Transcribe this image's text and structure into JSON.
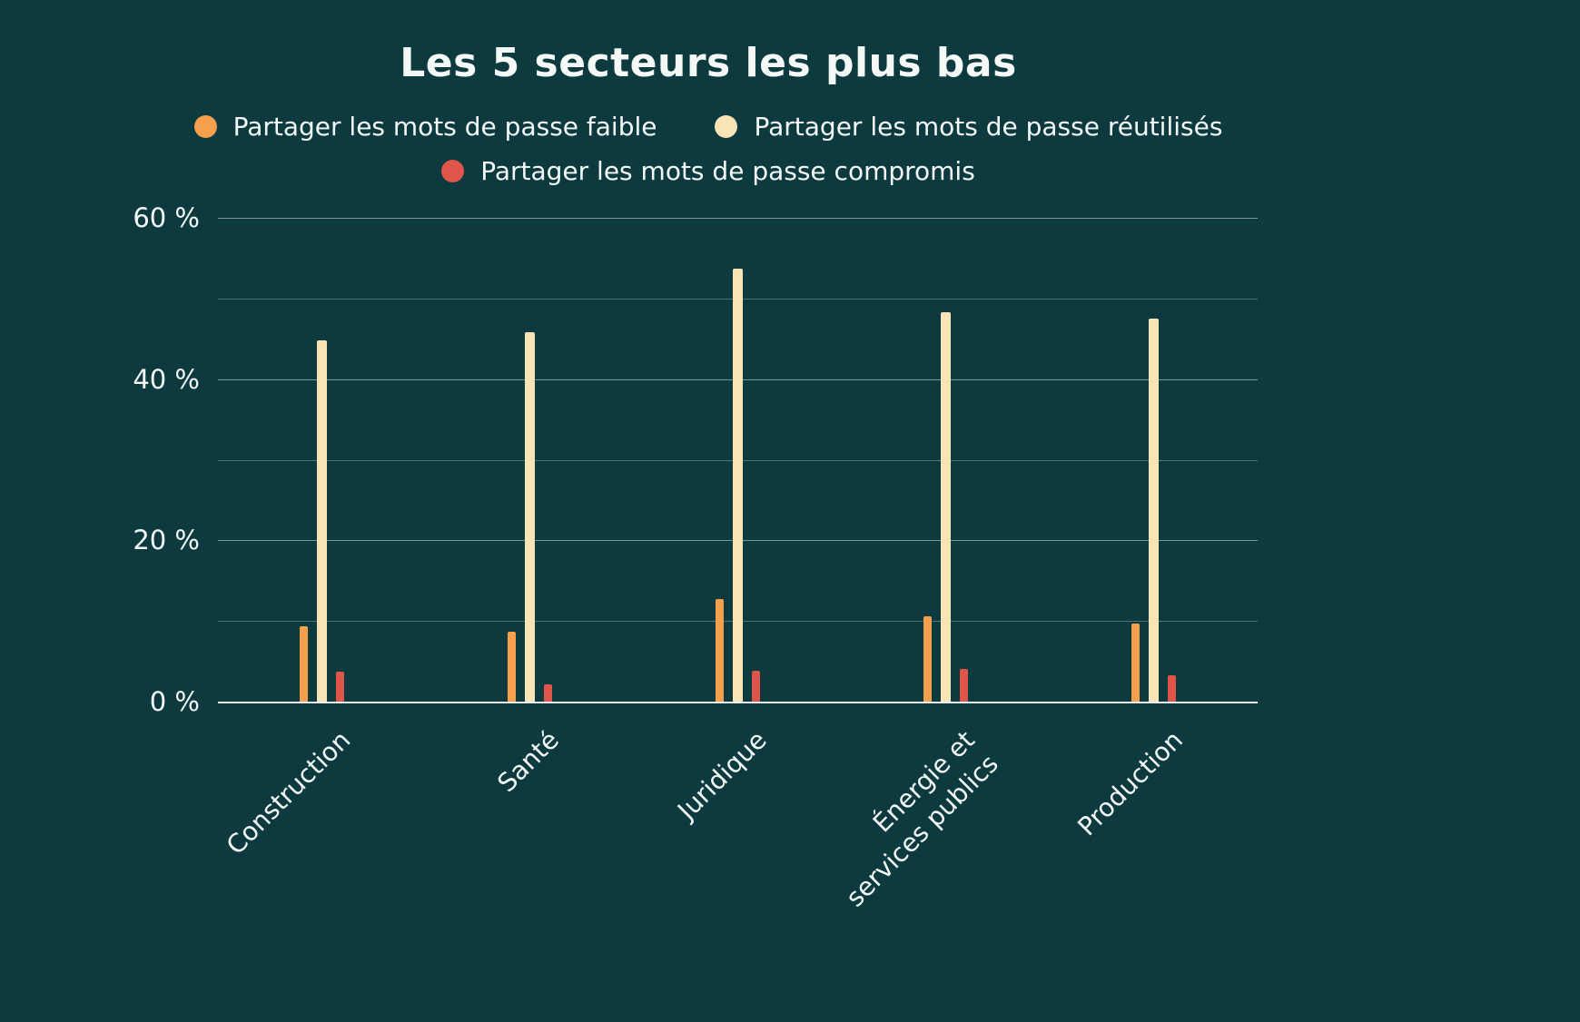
{
  "title": "Les 5 secteurs les plus bas",
  "colors": {
    "background": "#0C3A3E",
    "text": "#F4F9F8"
  },
  "legend": [
    {
      "label": "Partager les mots de passe faible",
      "color": "#F5A04C"
    },
    {
      "label": "Partager les mots de passe réutilisés",
      "color": "#F8E4B6"
    },
    {
      "label": "Partager les mots de passe compromis",
      "color": "#DF5549"
    }
  ],
  "chart_data": {
    "type": "bar",
    "title": "Les 5 secteurs les plus bas",
    "categories": [
      "Construction",
      "Santé",
      "Juridique",
      "Énergie et\nservices publics",
      "Production"
    ],
    "series": [
      {
        "name": "Partager les mots de passe faible",
        "color": "#F5A04C",
        "values": [
          9.4,
          8.7,
          12.7,
          10.6,
          9.7
        ]
      },
      {
        "name": "Partager les mots de passe réutilisés",
        "color": "#F8E4B6",
        "values": [
          44.8,
          45.8,
          53.7,
          48.3,
          47.5
        ]
      },
      {
        "name": "Partager les mots de passe compromis",
        "color": "#DF5549",
        "values": [
          3.7,
          2.1,
          3.8,
          4.1,
          3.3
        ]
      }
    ],
    "xlabel": "",
    "ylabel": "",
    "ylim": [
      0,
      60
    ],
    "yticks": [
      0,
      20,
      40,
      60
    ],
    "gridlines": [
      0,
      10,
      20,
      30,
      40,
      50,
      60
    ],
    "ytick_format": "{v} %",
    "grid": true,
    "legend_position": "top"
  }
}
